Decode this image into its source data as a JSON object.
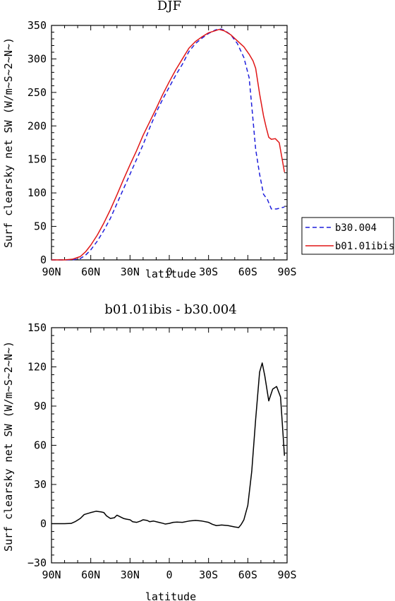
{
  "chart_data": [
    {
      "type": "line",
      "title": "DJF",
      "xlabel": "latitude",
      "ylabel": "Surf clearsky net SW (W/m~S~2~N~)",
      "x_ticks": [
        "90N",
        "60N",
        "30N",
        "0",
        "30S",
        "60S",
        "90S"
      ],
      "xlim": [
        -90,
        90
      ],
      "ylim": [
        0,
        350
      ],
      "y_ticks": [
        0,
        50,
        100,
        150,
        200,
        250,
        300,
        350
      ],
      "legend": "right",
      "series": [
        {
          "name": "b30.004",
          "color": "#1f1fdc",
          "style": "dashed",
          "points": [
            [
              -90,
              0
            ],
            [
              -80,
              0
            ],
            [
              -74,
              0
            ],
            [
              -68,
              2
            ],
            [
              -64,
              7
            ],
            [
              -60,
              15
            ],
            [
              -55,
              28
            ],
            [
              -50,
              44
            ],
            [
              -45,
              62
            ],
            [
              -40,
              84
            ],
            [
              -35,
              106
            ],
            [
              -30,
              128
            ],
            [
              -25,
              150
            ],
            [
              -20,
              172
            ],
            [
              -15,
              197
            ],
            [
              -10,
              220
            ],
            [
              -5,
              240
            ],
            [
              0,
              258
            ],
            [
              5,
              276
            ],
            [
              10,
              292
            ],
            [
              15,
              311
            ],
            [
              20,
              323
            ],
            [
              25,
              331
            ],
            [
              30,
              338
            ],
            [
              35,
              343
            ],
            [
              38,
              345
            ],
            [
              42,
              343
            ],
            [
              47,
              336
            ],
            [
              52,
              323
            ],
            [
              57,
              302
            ],
            [
              61,
              272
            ],
            [
              63,
              230
            ],
            [
              66,
              165
            ],
            [
              69,
              128
            ],
            [
              72,
              98
            ],
            [
              75,
              90
            ],
            [
              78,
              76
            ],
            [
              82,
              76
            ],
            [
              86,
              78
            ],
            [
              88,
              79
            ]
          ]
        },
        {
          "name": "b01.01ibis",
          "color": "#e01616",
          "style": "solid",
          "points": [
            [
              -90,
              0
            ],
            [
              -80,
              0
            ],
            [
              -74,
              1
            ],
            [
              -68,
              5
            ],
            [
              -64,
              12
            ],
            [
              -60,
              22
            ],
            [
              -55,
              37
            ],
            [
              -50,
              55
            ],
            [
              -45,
              75
            ],
            [
              -40,
              97
            ],
            [
              -35,
              120
            ],
            [
              -30,
              142
            ],
            [
              -25,
              163
            ],
            [
              -20,
              186
            ],
            [
              -15,
              206
            ],
            [
              -10,
              226
            ],
            [
              -5,
              247
            ],
            [
              0,
              266
            ],
            [
              5,
              284
            ],
            [
              10,
              300
            ],
            [
              15,
              316
            ],
            [
              20,
              326
            ],
            [
              25,
              333
            ],
            [
              30,
              339
            ],
            [
              35,
              342
            ],
            [
              38,
              344
            ],
            [
              42,
              342
            ],
            [
              47,
              336
            ],
            [
              52,
              327
            ],
            [
              57,
              318
            ],
            [
              61,
              307
            ],
            [
              64,
              297
            ],
            [
              66,
              286
            ],
            [
              69,
              248
            ],
            [
              72,
              215
            ],
            [
              74,
              198
            ],
            [
              76,
              183
            ],
            [
              78,
              180
            ],
            [
              81,
              181
            ],
            [
              84,
              175
            ],
            [
              88,
              131
            ]
          ]
        }
      ]
    },
    {
      "type": "line",
      "title": "b01.01ibis - b30.004",
      "xlabel": "latitude",
      "ylabel": "Surf clearsky net SW (W/m~S~2~N~)",
      "x_ticks": [
        "90N",
        "60N",
        "30N",
        "0",
        "30S",
        "60S",
        "90S"
      ],
      "xlim": [
        -90,
        90
      ],
      "ylim": [
        -30,
        150
      ],
      "y_ticks": [
        -30,
        0,
        30,
        60,
        90,
        120,
        150
      ],
      "series": [
        {
          "color": "#000000",
          "style": "solid",
          "points": [
            [
              -90,
              0
            ],
            [
              -80,
              0
            ],
            [
              -75,
              0.2
            ],
            [
              -72,
              1.5
            ],
            [
              -68,
              4
            ],
            [
              -65,
              7
            ],
            [
              -60,
              8.5
            ],
            [
              -56,
              9.5
            ],
            [
              -52,
              9
            ],
            [
              -50,
              8.5
            ],
            [
              -48,
              6
            ],
            [
              -45,
              4
            ],
            [
              -42,
              4.5
            ],
            [
              -40,
              6.5
            ],
            [
              -38,
              5.5
            ],
            [
              -35,
              4
            ],
            [
              -33,
              3.5
            ],
            [
              -30,
              3
            ],
            [
              -28,
              1.5
            ],
            [
              -25,
              1
            ],
            [
              -22,
              2
            ],
            [
              -20,
              3
            ],
            [
              -17,
              2.5
            ],
            [
              -15,
              1.5
            ],
            [
              -12,
              2
            ],
            [
              -8,
              1
            ],
            [
              -5,
              0.3
            ],
            [
              -3,
              -0.3
            ],
            [
              0,
              0.2
            ],
            [
              3,
              1
            ],
            [
              6,
              1.2
            ],
            [
              10,
              1
            ],
            [
              15,
              2
            ],
            [
              20,
              2.5
            ],
            [
              25,
              2
            ],
            [
              30,
              1
            ],
            [
              33,
              -0.5
            ],
            [
              36,
              -1.5
            ],
            [
              40,
              -1
            ],
            [
              45,
              -1.5
            ],
            [
              50,
              -2.5
            ],
            [
              53,
              -3
            ],
            [
              55,
              -0.5
            ],
            [
              57,
              3
            ],
            [
              60,
              14
            ],
            [
              63,
              40
            ],
            [
              66,
              80
            ],
            [
              69,
              116
            ],
            [
              71,
              123
            ],
            [
              73,
              113
            ],
            [
              76,
              94
            ],
            [
              79,
              103
            ],
            [
              82,
              105
            ],
            [
              85,
              97
            ],
            [
              88,
              52
            ]
          ]
        }
      ]
    }
  ]
}
